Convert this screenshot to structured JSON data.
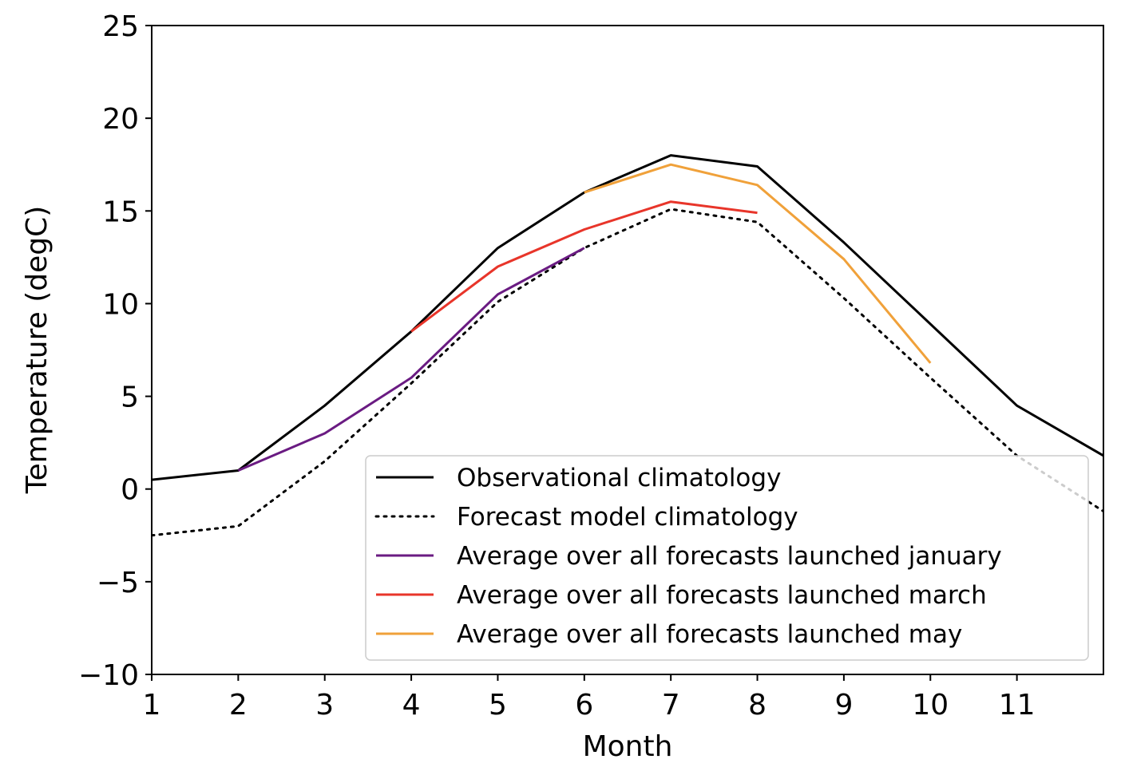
{
  "chart_data": {
    "type": "line",
    "xlabel": "Month",
    "ylabel": "Temperature (degC)",
    "xlim": [
      1,
      12
    ],
    "ylim": [
      -10,
      25
    ],
    "xticks": [
      1,
      2,
      3,
      4,
      5,
      6,
      7,
      8,
      9,
      10,
      11
    ],
    "yticks": [
      -10,
      -5,
      0,
      5,
      10,
      15,
      20,
      25
    ],
    "ytick_labels": [
      "−10",
      "−5",
      "0",
      "5",
      "10",
      "15",
      "20",
      "25"
    ],
    "grid": false,
    "legend_position": "lower-right",
    "series": [
      {
        "name": "Observational climatology",
        "color": "#000000",
        "style": "solid",
        "x": [
          1,
          2,
          3,
          4,
          5,
          6,
          7,
          8,
          9,
          10,
          11,
          12
        ],
        "y": [
          0.5,
          1.0,
          4.5,
          8.5,
          13.0,
          16.0,
          18.0,
          17.4,
          13.3,
          8.9,
          4.5,
          1.8
        ]
      },
      {
        "name": "Forecast model climatology",
        "color": "#000000",
        "style": "dotted",
        "x": [
          1,
          2,
          3,
          4,
          5,
          6,
          7,
          8,
          9,
          10,
          11,
          12
        ],
        "y": [
          -2.5,
          -2.0,
          1.5,
          5.7,
          10.1,
          13.0,
          15.1,
          14.4,
          10.3,
          6.0,
          1.8,
          -1.2
        ]
      },
      {
        "name": "Average over all forecasts launched january",
        "color": "#6a1b82",
        "style": "solid",
        "x": [
          2,
          3,
          4,
          5,
          6
        ],
        "y": [
          1.0,
          3.0,
          6.0,
          10.5,
          13.0
        ]
      },
      {
        "name": "Average over all forecasts launched march",
        "color": "#e8352a",
        "style": "solid",
        "x": [
          4,
          5,
          6,
          7,
          8
        ],
        "y": [
          8.5,
          12.0,
          14.0,
          15.5,
          14.9
        ]
      },
      {
        "name": "Average over all forecasts launched may",
        "color": "#f0a13a",
        "style": "solid",
        "x": [
          6,
          7,
          8,
          9,
          10
        ],
        "y": [
          16.0,
          17.5,
          16.4,
          12.4,
          6.8
        ]
      }
    ]
  }
}
